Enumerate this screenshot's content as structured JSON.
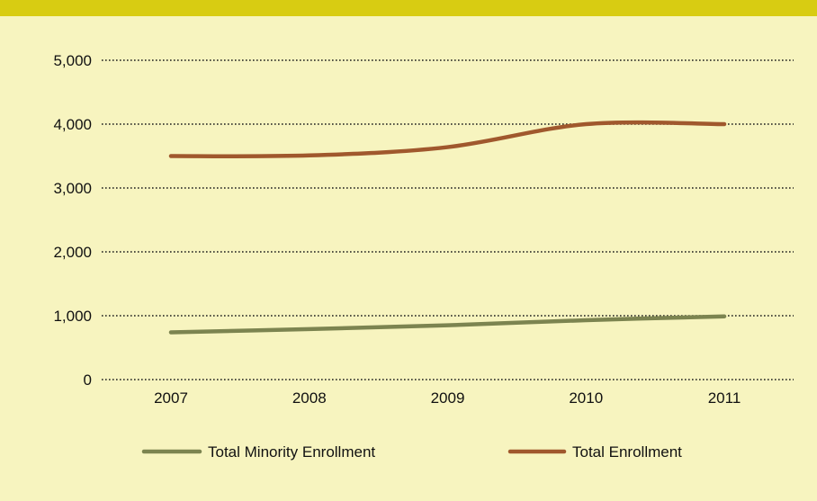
{
  "colors": {
    "background": "#f7f4bf",
    "top_band": "#d8cc12",
    "grid": "#1a1a1a"
  },
  "chart_data": {
    "type": "line",
    "title": "",
    "xlabel": "",
    "ylabel": "",
    "categories": [
      "2007",
      "2008",
      "2009",
      "2010",
      "2011"
    ],
    "ylim": [
      0,
      5000
    ],
    "y_ticks": [
      0,
      1000,
      2000,
      3000,
      4000,
      5000
    ],
    "y_tick_labels": [
      "0",
      "1,000",
      "2,000",
      "3,000",
      "4,000",
      "5,000"
    ],
    "grid": "horizontal dotted",
    "legend_position": "bottom",
    "series": [
      {
        "name": "Total Minority Enrollment",
        "color": "#7c8450",
        "values": [
          740,
          790,
          850,
          930,
          990
        ]
      },
      {
        "name": "Total Enrollment",
        "color": "#a0582d",
        "values": [
          3500,
          3510,
          3640,
          4000,
          4000
        ]
      }
    ]
  }
}
